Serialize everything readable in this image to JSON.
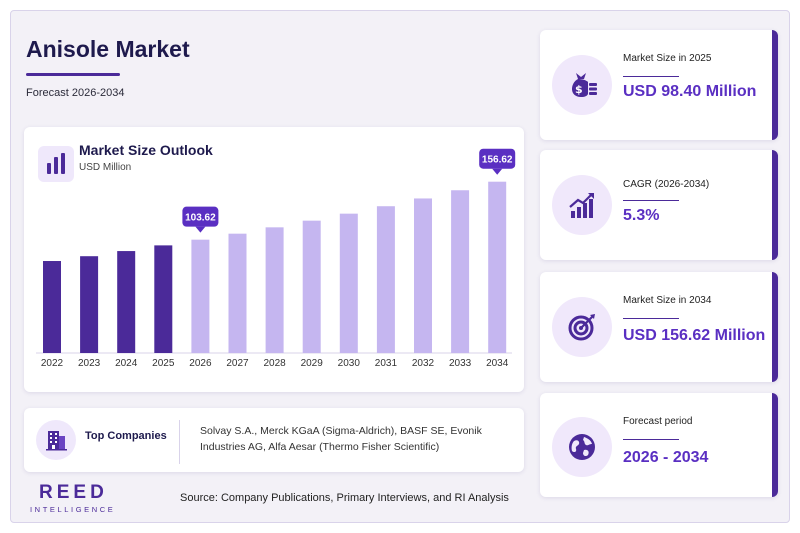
{
  "header": {
    "title": "Anisole Market",
    "subtitle": "Forecast 2026-2034"
  },
  "chart_panel": {
    "title": "Market Size Outlook",
    "unit": "USD Million"
  },
  "chart_data": {
    "type": "bar",
    "title": "Market Size Outlook",
    "ylabel": "USD Million",
    "categories": [
      "2022",
      "2023",
      "2024",
      "2025",
      "2026",
      "2027",
      "2028",
      "2029",
      "2030",
      "2031",
      "2032",
      "2033",
      "2034"
    ],
    "values": [
      84.1,
      88.5,
      93.2,
      98.4,
      103.62,
      109.1,
      114.9,
      121.0,
      127.4,
      134.2,
      141.3,
      148.8,
      156.62
    ],
    "labeled_values": {
      "2026": "103.62",
      "2034": "156.62"
    },
    "historical_color": "#4b2a99",
    "forecast_color": "#c5b6f0",
    "callout_color": "#5a2fc2",
    "ylim": [
      0,
      160
    ],
    "grid": false
  },
  "top_companies": {
    "label": "Top Companies",
    "text": "Solvay S.A., Merck KGaA (Sigma-Aldrich), BASF SE, Evonik Industries AG, Alfa Aesar (Thermo Fisher Scientific)"
  },
  "logo": {
    "line1": "REED",
    "line2": "INTELLIGENCE"
  },
  "source": "Source: Company Publications, Primary Interviews, and RI Analysis",
  "stats": [
    {
      "label": "Market Size in 2025",
      "value": "USD 98.40 Million",
      "icon": "money-bag-icon"
    },
    {
      "label": "CAGR (2026-2034)",
      "value": "5.3%",
      "icon": "growth-chart-icon"
    },
    {
      "label": "Market Size in 2034",
      "value": "USD 156.62 Million",
      "icon": "target-icon"
    },
    {
      "label": "Forecast period",
      "value": "2026 - 2034",
      "icon": "globe-icon"
    }
  ],
  "colors": {
    "accent": "#4b2a99",
    "value": "#5a2fc2",
    "icon_bg": "#f0e8fb",
    "title": "#1e1a4d"
  }
}
